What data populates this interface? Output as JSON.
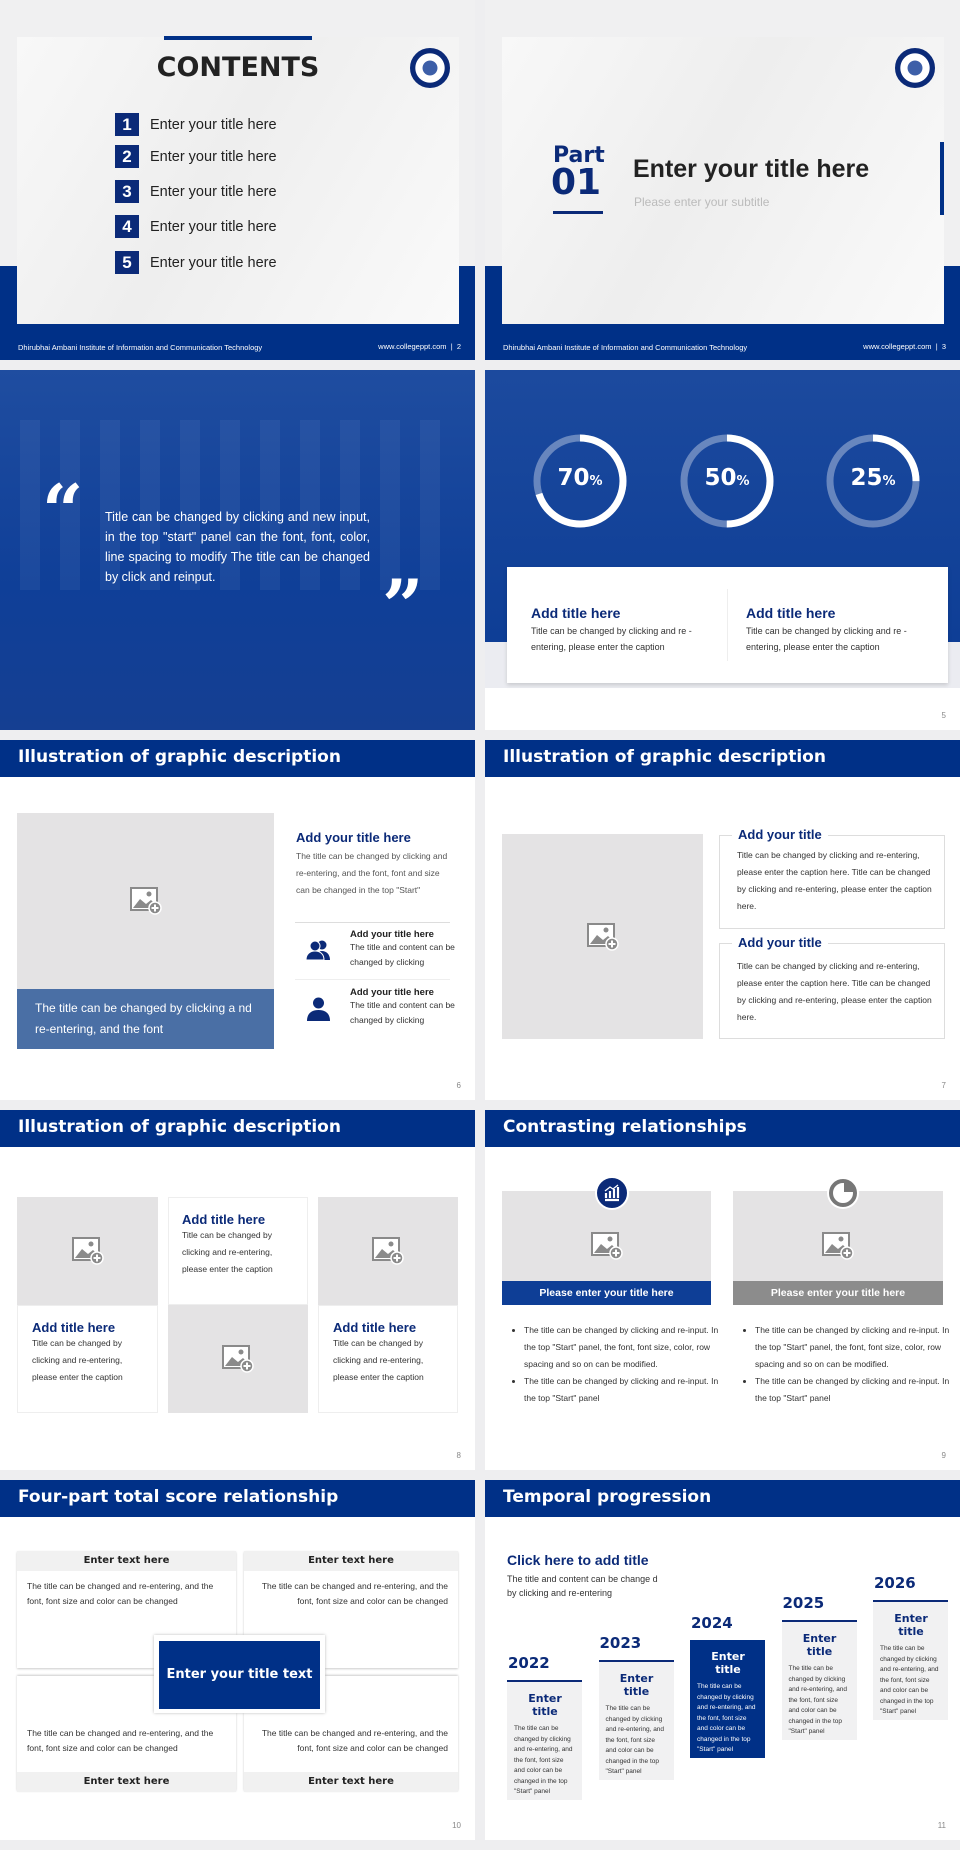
{
  "colors": {
    "brand": "#003087",
    "caption_blue": "#4a6fa5",
    "placeholder": "#e4e3e4",
    "gray_bar": "#8c8c8c"
  },
  "footer": {
    "institute": "Dhirubhai Ambani Institute of Information and Communication Technology",
    "site": "www.collegeppt.com"
  },
  "s2": {
    "title": "CONTENTS",
    "items": [
      {
        "n": "1",
        "label": "Enter your title here"
      },
      {
        "n": "2",
        "label": "Enter your title here"
      },
      {
        "n": "3",
        "label": "Enter your title here"
      },
      {
        "n": "4",
        "label": "Enter your title here"
      },
      {
        "n": "5",
        "label": "Enter your title here"
      }
    ],
    "page": "2"
  },
  "s3": {
    "part": "Part",
    "num": "01",
    "title": "Enter your title here",
    "subtitle": "Please enter your subtitle",
    "page": "3"
  },
  "s4": {
    "quote": "Title can be changed by clicking and new input, in the top \"start\" panel can the font, font, color, line spacing to modify The title can be changed by click and reinput."
  },
  "s5": {
    "rings": [
      {
        "value": "70",
        "unit": "%",
        "fraction": 0.7
      },
      {
        "value": "50",
        "unit": "%",
        "fraction": 0.5
      },
      {
        "value": "25",
        "unit": "%",
        "fraction": 0.25
      }
    ],
    "cards": [
      {
        "title": "Add title here",
        "text": "Title can be changed by clicking and re -entering, please enter the caption"
      },
      {
        "title": "Add title here",
        "text": "Title can be changed by clicking and re -entering, please enter the caption"
      }
    ],
    "page": "5"
  },
  "s6": {
    "header": "Illustration of graphic description",
    "caption": "The title can be changed by clicking a nd re-entering, and the font",
    "title": "Add your title here",
    "text": "The title can be changed by clicking and re-entering, and the font, font and size can be changed in the top \"Start\"",
    "items": [
      {
        "icon": "users-icon",
        "title": "Add your title here",
        "text": "The title and content can be changed by clicking"
      },
      {
        "icon": "user-icon",
        "title": "Add your title here",
        "text": "The title and content can be changed by clicking"
      }
    ],
    "page": "6"
  },
  "s7": {
    "header": "Illustration of graphic description",
    "boxes": [
      {
        "title": "Add your title",
        "text": "Title can be changed by clicking and re-entering, please enter the caption here. Title can be changed by clicking and re-entering, please enter the caption here."
      },
      {
        "title": "Add your title",
        "text": "Title can be changed by clicking and re-entering, please enter the caption here. Title can be changed by clicking and re-entering, please enter the caption here."
      }
    ],
    "page": "7"
  },
  "s8": {
    "header": "Illustration of graphic description",
    "cards": [
      {
        "title": "Add title here",
        "text": "Title can be changed by clicking and re-entering, please enter the caption"
      },
      {
        "title": "Add title here",
        "text": "Title can be changed by clicking and re-entering, please enter the caption"
      },
      {
        "title": "Add title here",
        "text": "Title can be changed by clicking and re-entering, please enter the caption"
      }
    ],
    "page": "8"
  },
  "s9": {
    "header": "Contrasting relationships",
    "cols": [
      {
        "icon": "bar-chart-icon",
        "bar": "Please enter your title here",
        "b1": "The title can be changed by clicking and re-input. In the top \"Start\" panel, the font, font size, color, row spacing and so on can be modified.",
        "b2": "The title can be changed by clicking and re-input. In the top \"Start\" panel"
      },
      {
        "icon": "pie-chart-icon",
        "bar": "Please enter your title here",
        "b1": "The title can be changed by clicking and re-input. In the top \"Start\" panel, the font, font size, color, row spacing and so on can be modified.",
        "b2": "The title can be changed by clicking and re-input. In the top \"Start\" panel"
      }
    ],
    "page": "9"
  },
  "s10": {
    "header": "Four-part total score relationship",
    "center": "Enter your title text",
    "parts": [
      {
        "label": "Enter text here",
        "text": "The title can be changed and re-entering, and the font, font size and color can be changed"
      },
      {
        "label": "Enter text here",
        "text": "The title can be changed and re-entering, and the font, font size and color can be changed"
      },
      {
        "label": "Enter text here",
        "text": "The title can be changed and re-entering, and the font, font size and color can be changed"
      },
      {
        "label": "Enter text here",
        "text": "The title can be changed and re-entering, and the font, font size and color can be changed"
      }
    ],
    "page": "10"
  },
  "s11": {
    "header": "Temporal progression",
    "title": "Click here to add title",
    "text": "The title and content can be change d by clicking and re-entering",
    "steps": [
      {
        "year": "2022",
        "title": "Enter title",
        "text": "The title can be changed by clicking and re-entering, and the font, font size and color can be changed in the top \"Start\" panel"
      },
      {
        "year": "2023",
        "title": "Enter title",
        "text": "The title can be changed by clicking and re-entering, and the font, font size and color can be changed in the top \"Start\" panel"
      },
      {
        "year": "2024",
        "title": "Enter title",
        "text": "The title can be changed by clicking and re-entering, and the font, font size and color can be changed in the top \"Start\" panel"
      },
      {
        "year": "2025",
        "title": "Enter title",
        "text": "The title can be changed by clicking and re-entering, and the font, font size and color can be changed in the top \"Start\" panel"
      },
      {
        "year": "2026",
        "title": "Enter title",
        "text": "The title can be changed by clicking and re-entering, and the font, font size and color can be changed in the top \"Start\" panel"
      }
    ],
    "page": "11"
  }
}
